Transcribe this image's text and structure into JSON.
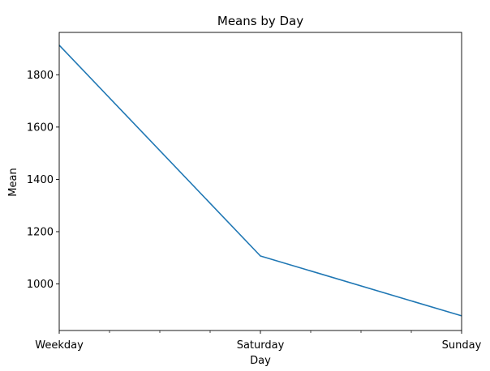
{
  "chart_data": {
    "type": "line",
    "title": "Means by Day",
    "xlabel": "Day",
    "ylabel": "Mean",
    "categories": [
      "Weekday",
      "Saturday",
      "Sunday"
    ],
    "series": [
      {
        "values": [
          1913,
          1107,
          878
        ],
        "color": "#1f77b4"
      }
    ],
    "ylim": [
      822,
      1962
    ],
    "yticks": [
      1000,
      1200,
      1400,
      1600,
      1800
    ],
    "minor_xticks_between_categories": 3,
    "grid": false
  }
}
